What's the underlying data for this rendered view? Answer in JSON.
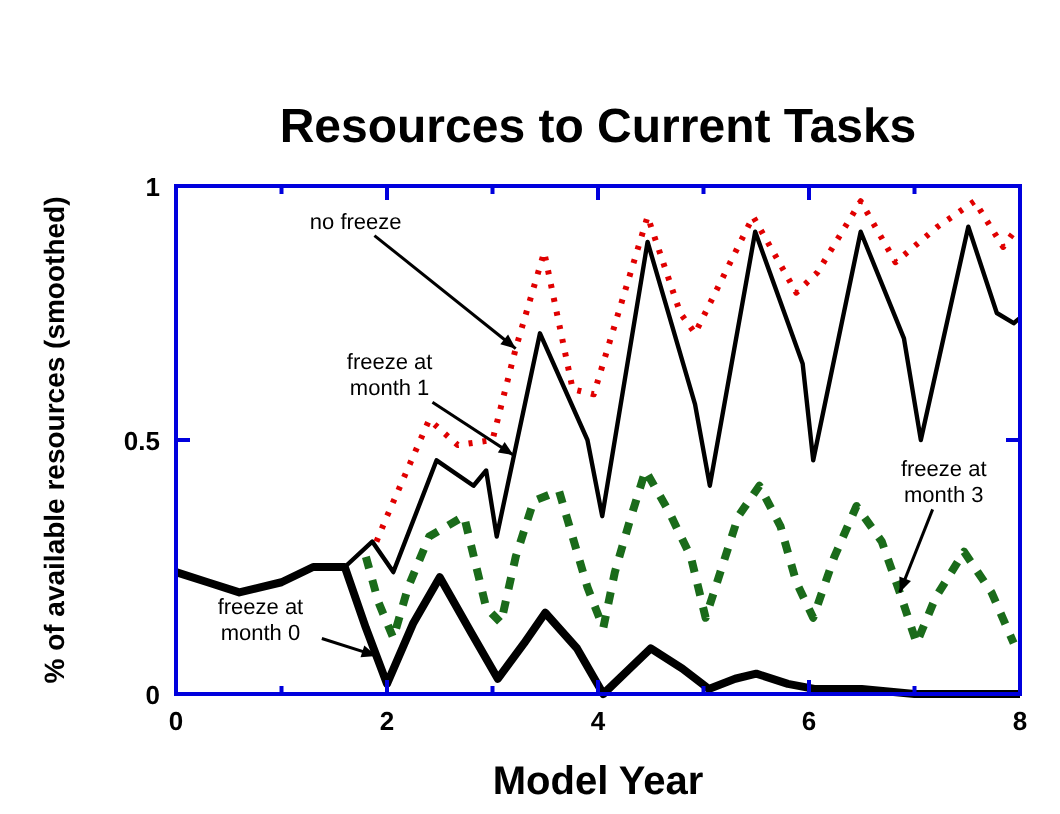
{
  "chart_data": {
    "type": "line",
    "title": "Resources to Current Tasks",
    "xlabel": "Model Year",
    "ylabel": "% of available resources (smoothed)",
    "xlim": [
      0,
      8
    ],
    "ylim": [
      0,
      1
    ],
    "xticks": [
      0,
      {
        "value": 1,
        "label": null
      },
      2,
      {
        "value": 3,
        "label": null
      },
      4,
      {
        "value": 5,
        "label": null
      },
      6,
      {
        "value": 7,
        "label": null
      },
      8
    ],
    "yticks": [
      0,
      0.5,
      1
    ],
    "grid": false,
    "marker": "none",
    "series": [
      {
        "color": "#000000",
        "line_style": "solid",
        "x": [
          0,
          0.3,
          0.6,
          1.0,
          1.3,
          1.6,
          1.8,
          2.0,
          2.25,
          2.5,
          2.8,
          3.05,
          3.3,
          3.5,
          3.8,
          4.05,
          4.3,
          4.5,
          4.8,
          5.05,
          5.3,
          5.5,
          5.8,
          6.05,
          6.5,
          7.0,
          7.5,
          8.0
        ],
        "values": [
          0.24,
          0.22,
          0.2,
          0.22,
          0.25,
          0.25,
          0.13,
          0.02,
          0.14,
          0.23,
          0.12,
          0.03,
          0.1,
          0.16,
          0.09,
          0.0,
          0.05,
          0.09,
          0.05,
          0.01,
          0.03,
          0.04,
          0.02,
          0.01,
          0.01,
          0.0,
          0.0,
          0.0
        ]
      },
      {
        "color": "#000000",
        "line_style": "solid",
        "x": [
          1.6,
          1.86,
          2.06,
          2.47,
          2.82,
          2.94,
          3.04,
          3.45,
          3.9,
          4.04,
          4.47,
          4.92,
          5.06,
          5.49,
          5.94,
          6.04,
          6.49,
          6.9,
          7.06,
          7.51,
          7.78,
          7.94,
          8.0
        ],
        "values": [
          0.25,
          0.3,
          0.24,
          0.46,
          0.41,
          0.44,
          0.31,
          0.71,
          0.5,
          0.35,
          0.89,
          0.57,
          0.41,
          0.91,
          0.65,
          0.46,
          0.91,
          0.7,
          0.5,
          0.92,
          0.75,
          0.73,
          0.74
        ]
      },
      {
        "color": "#e00000",
        "line_style": "dotted",
        "x": [
          1.9,
          2.0,
          2.4,
          2.67,
          3.0,
          3.22,
          3.49,
          3.76,
          3.96,
          4.47,
          4.78,
          4.92,
          5.47,
          5.88,
          6.08,
          6.49,
          6.82,
          7.22,
          7.57,
          7.84,
          7.98
        ],
        "values": [
          0.3,
          0.35,
          0.54,
          0.49,
          0.5,
          0.68,
          0.87,
          0.6,
          0.59,
          0.94,
          0.75,
          0.71,
          0.94,
          0.79,
          0.83,
          0.97,
          0.85,
          0.92,
          0.97,
          0.88,
          0.92
        ]
      },
      {
        "color": "#1a6b1a",
        "line_style": "dashed",
        "x": [
          1.8,
          1.92,
          2.06,
          2.2,
          2.4,
          2.73,
          2.94,
          3.08,
          3.22,
          3.39,
          3.63,
          3.9,
          4.05,
          4.16,
          4.3,
          4.45,
          4.67,
          4.88,
          5.02,
          5.16,
          5.33,
          5.53,
          5.73,
          5.88,
          6.04,
          6.24,
          6.45,
          6.69,
          6.86,
          7.02,
          7.2,
          7.47,
          7.73,
          7.94
        ],
        "values": [
          0.27,
          0.18,
          0.11,
          0.21,
          0.31,
          0.35,
          0.17,
          0.14,
          0.27,
          0.38,
          0.4,
          0.21,
          0.13,
          0.24,
          0.34,
          0.44,
          0.36,
          0.27,
          0.15,
          0.24,
          0.35,
          0.41,
          0.33,
          0.22,
          0.15,
          0.27,
          0.37,
          0.3,
          0.2,
          0.1,
          0.19,
          0.28,
          0.2,
          0.1
        ]
      }
    ],
    "annotations": [
      {
        "text": "no freeze",
        "x": 3.22,
        "y": 0.68
      },
      {
        "text": "freeze at\nmonth 1",
        "x": 3.2,
        "y": 0.47
      },
      {
        "text": "freeze at\nmonth 3",
        "x": 6.86,
        "y": 0.2
      },
      {
        "text": "freeze at\nmonth 0",
        "x": 1.9,
        "y": 0.075
      }
    ]
  }
}
